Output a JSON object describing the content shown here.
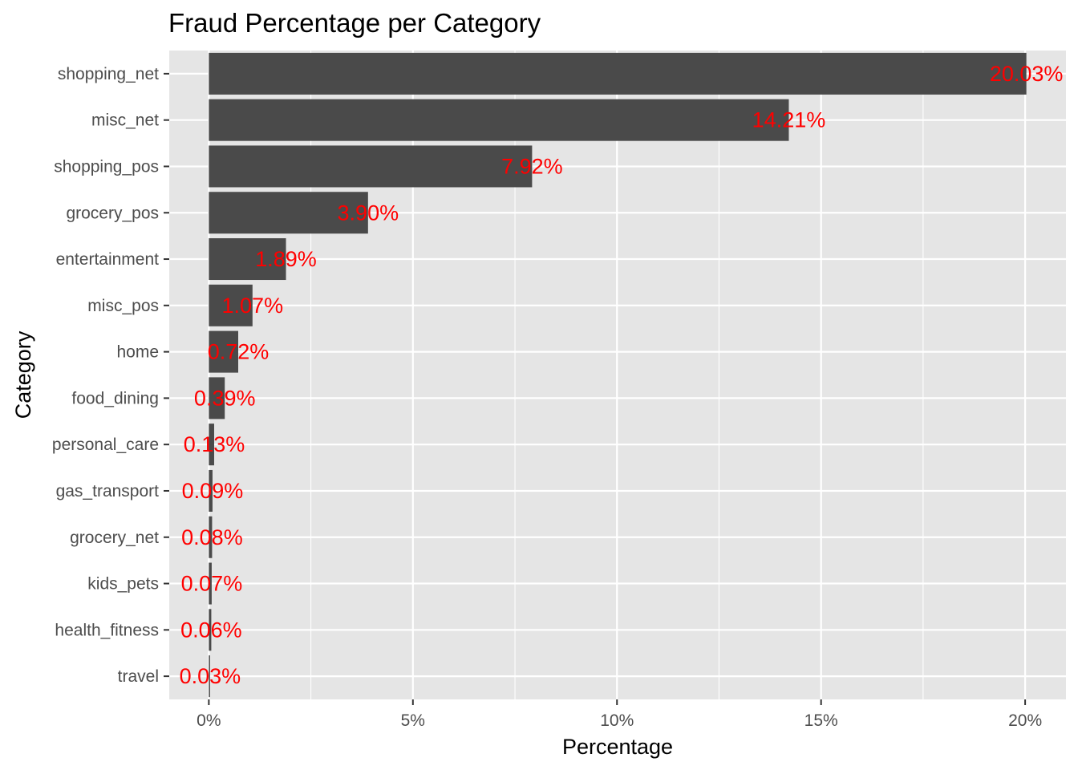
{
  "chart_data": {
    "type": "bar",
    "orientation": "horizontal",
    "title": "Fraud Percentage per Category",
    "xlabel": "Percentage",
    "ylabel": "Category",
    "categories": [
      "shopping_net",
      "misc_net",
      "shopping_pos",
      "grocery_pos",
      "entertainment",
      "misc_pos",
      "home",
      "food_dining",
      "personal_care",
      "gas_transport",
      "grocery_net",
      "kids_pets",
      "health_fitness",
      "travel"
    ],
    "values": [
      20.03,
      14.21,
      7.92,
      3.9,
      1.89,
      1.07,
      0.72,
      0.39,
      0.13,
      0.09,
      0.08,
      0.07,
      0.06,
      0.03
    ],
    "data_labels": [
      "20.03%",
      "14.21%",
      "7.92%",
      "3.90%",
      "1.89%",
      "1.07%",
      "0.72%",
      "0.39%",
      "0.13%",
      "0.09%",
      "0.08%",
      "0.07%",
      "0.06%",
      "0.03%"
    ],
    "x_ticks": [
      0,
      5,
      10,
      15,
      20
    ],
    "x_tick_labels": [
      "0%",
      "5%",
      "10%",
      "15%",
      "20%"
    ],
    "xlim": [
      -0.97,
      21.0
    ],
    "grid": true,
    "legend": "none",
    "colors": {
      "bar": "#4a4a4a",
      "panel": "#e5e5e5",
      "grid": "#ffffff",
      "data_label": "#ff0000"
    }
  }
}
